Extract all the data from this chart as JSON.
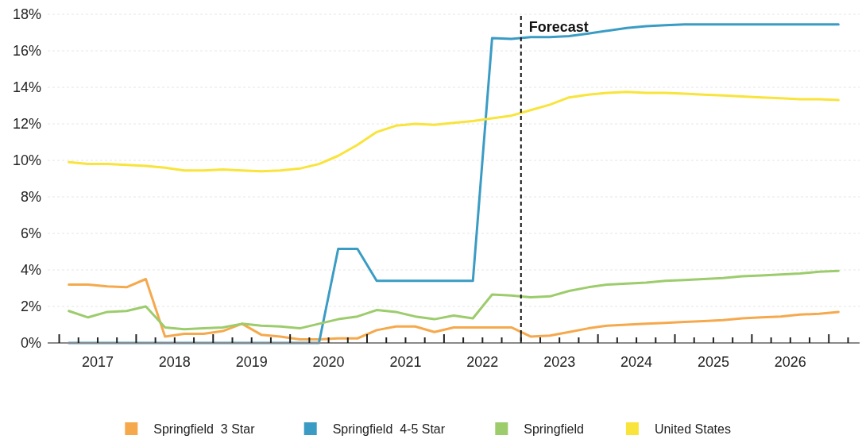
{
  "chart_data": {
    "type": "line",
    "x": [
      2017.125,
      2017.375,
      2017.625,
      2017.875,
      2018.125,
      2018.375,
      2018.625,
      2018.875,
      2019.125,
      2019.375,
      2019.625,
      2019.875,
      2020.125,
      2020.375,
      2020.625,
      2020.875,
      2021.125,
      2021.375,
      2021.625,
      2021.875,
      2022.125,
      2022.375,
      2022.625,
      2022.875,
      2023.125,
      2023.375,
      2023.625,
      2023.875,
      2024.125,
      2024.375,
      2024.625,
      2024.875,
      2025.125,
      2025.375,
      2025.625,
      2025.875,
      2026.125,
      2026.375,
      2026.625,
      2026.875,
      2027.125
    ],
    "series": [
      {
        "name": "Springfield  3 Star",
        "color": "#f5a94c",
        "values": [
          3.2,
          3.2,
          3.1,
          3.05,
          3.5,
          0.35,
          0.5,
          0.5,
          0.65,
          1.05,
          0.45,
          0.35,
          0.2,
          0.2,
          0.25,
          0.25,
          0.7,
          0.9,
          0.9,
          0.6,
          0.85,
          0.85,
          0.85,
          0.85,
          0.35,
          0.4,
          0.6,
          0.8,
          0.95,
          1.0,
          1.05,
          1.1,
          1.15,
          1.2,
          1.25,
          1.35,
          1.4,
          1.45,
          1.55,
          1.6,
          1.7
        ]
      },
      {
        "name": "Springfield  4-5 Star",
        "color": "#3a9cc4",
        "values": [
          0,
          0,
          0,
          0,
          0,
          0,
          0,
          0,
          0,
          0,
          0,
          0,
          0,
          0,
          5.15,
          5.15,
          3.4,
          3.4,
          3.4,
          3.4,
          3.4,
          3.4,
          16.7,
          16.65,
          16.75,
          16.75,
          16.8,
          16.95,
          17.1,
          17.25,
          17.35,
          17.4,
          17.45,
          17.45,
          17.45,
          17.45,
          17.45,
          17.45,
          17.45,
          17.45,
          17.45
        ]
      },
      {
        "name": "Springfield",
        "color": "#9ccc6c",
        "values": [
          1.75,
          1.4,
          1.7,
          1.75,
          2.0,
          0.85,
          0.75,
          0.8,
          0.85,
          1.05,
          0.95,
          0.9,
          0.8,
          1.05,
          1.3,
          1.45,
          1.8,
          1.7,
          1.45,
          1.3,
          1.5,
          1.35,
          2.65,
          2.6,
          2.5,
          2.55,
          2.85,
          3.05,
          3.2,
          3.25,
          3.3,
          3.4,
          3.45,
          3.5,
          3.55,
          3.65,
          3.7,
          3.75,
          3.8,
          3.9,
          3.95
        ]
      },
      {
        "name": "United States",
        "color": "#f8e43a",
        "values": [
          9.9,
          9.8,
          9.8,
          9.75,
          9.7,
          9.6,
          9.45,
          9.45,
          9.5,
          9.45,
          9.4,
          9.45,
          9.55,
          9.8,
          10.25,
          10.85,
          11.55,
          11.9,
          12.0,
          11.95,
          12.05,
          12.15,
          12.3,
          12.45,
          12.75,
          13.05,
          13.45,
          13.6,
          13.7,
          13.75,
          13.7,
          13.7,
          13.65,
          13.6,
          13.55,
          13.5,
          13.45,
          13.4,
          13.35,
          13.35,
          13.3
        ]
      }
    ],
    "xlim": [
      2016.85,
      2027.4
    ],
    "xticks": [
      {
        "value": 2017,
        "label": null
      },
      {
        "value": 2017.25,
        "label": null
      },
      {
        "value": 2017.5,
        "label": "2017"
      },
      {
        "value": 2017.75,
        "label": null
      },
      {
        "value": 2018,
        "label": null
      },
      {
        "value": 2018.25,
        "label": null
      },
      {
        "value": 2018.5,
        "label": "2018"
      },
      {
        "value": 2018.75,
        "label": null
      },
      {
        "value": 2019,
        "label": null
      },
      {
        "value": 2019.25,
        "label": null
      },
      {
        "value": 2019.5,
        "label": "2019"
      },
      {
        "value": 2019.75,
        "label": null
      },
      {
        "value": 2020,
        "label": null
      },
      {
        "value": 2020.25,
        "label": null
      },
      {
        "value": 2020.5,
        "label": "2020"
      },
      {
        "value": 2020.75,
        "label": null
      },
      {
        "value": 2021,
        "label": null
      },
      {
        "value": 2021.25,
        "label": null
      },
      {
        "value": 2021.5,
        "label": "2021"
      },
      {
        "value": 2021.75,
        "label": null
      },
      {
        "value": 2022,
        "label": null
      },
      {
        "value": 2022.25,
        "label": null
      },
      {
        "value": 2022.5,
        "label": "2022"
      },
      {
        "value": 2022.75,
        "label": null
      },
      {
        "value": 2023,
        "label": null
      },
      {
        "value": 2023.25,
        "label": null
      },
      {
        "value": 2023.5,
        "label": "2023"
      },
      {
        "value": 2023.75,
        "label": null
      },
      {
        "value": 2024,
        "label": null
      },
      {
        "value": 2024.25,
        "label": null
      },
      {
        "value": 2024.5,
        "label": "2024"
      },
      {
        "value": 2024.75,
        "label": null
      },
      {
        "value": 2025,
        "label": null
      },
      {
        "value": 2025.25,
        "label": null
      },
      {
        "value": 2025.5,
        "label": "2025"
      },
      {
        "value": 2025.75,
        "label": null
      },
      {
        "value": 2026,
        "label": null
      },
      {
        "value": 2026.25,
        "label": null
      },
      {
        "value": 2026.5,
        "label": "2026"
      },
      {
        "value": 2026.75,
        "label": null
      },
      {
        "value": 2027,
        "label": null
      },
      {
        "value": 2027.25,
        "label": null
      }
    ],
    "ylim": [
      0,
      18
    ],
    "yticks": [
      {
        "value": 0,
        "label": "0%"
      },
      {
        "value": 2,
        "label": "2%"
      },
      {
        "value": 4,
        "label": "4%"
      },
      {
        "value": 6,
        "label": "6%"
      },
      {
        "value": 8,
        "label": "8%"
      },
      {
        "value": 10,
        "label": "10%"
      },
      {
        "value": 12,
        "label": "12%"
      },
      {
        "value": 14,
        "label": "14%"
      },
      {
        "value": 16,
        "label": "16%"
      },
      {
        "value": 18,
        "label": "18%"
      }
    ],
    "ref_lines": [
      {
        "axis": "x",
        "value": 2023,
        "label": "Forecast",
        "color": "#111111",
        "line_style": "dashed"
      }
    ],
    "grid": "y",
    "legend": "bottom",
    "marker": "none",
    "line_style": "solid"
  }
}
